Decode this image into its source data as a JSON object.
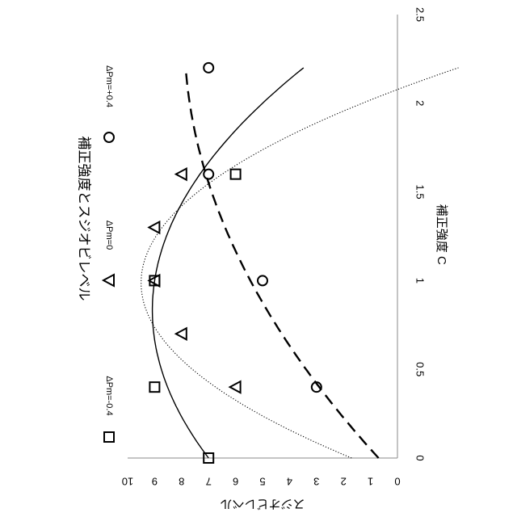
{
  "chart_data": {
    "type": "scatter",
    "title": "補正強度とスジオビレベル",
    "xlabel": "補正強度 C",
    "ylabel": "スジオビレベル",
    "xlim": [
      0,
      2.5
    ],
    "ylim": [
      0,
      10
    ],
    "x_ticks": [
      "0",
      "0.5",
      "1",
      "1.5",
      "2",
      "2.5"
    ],
    "y_ticks": [
      "0",
      "1",
      "2",
      "3",
      "4",
      "5",
      "6",
      "7",
      "8",
      "9",
      "10"
    ],
    "grid": false,
    "legend_position": "top",
    "orientation": "rotated 90 degrees clockwise",
    "series": [
      {
        "name": "ΔPm=-0.4",
        "marker": "square",
        "line_style": "solid",
        "points": [
          [
            0,
            7
          ],
          [
            0.4,
            9
          ],
          [
            1,
            9
          ],
          [
            1.6,
            6
          ]
        ],
        "fit_quadratic": [
          7.0,
          5.0,
          -3.0
        ]
      },
      {
        "name": "ΔPm=0",
        "marker": "triangle",
        "line_style": "dotted",
        "points": [
          [
            0.4,
            6
          ],
          [
            0.7,
            8
          ],
          [
            1,
            9
          ],
          [
            1.3,
            9
          ],
          [
            1.6,
            8
          ]
        ],
        "fit_quadratic": [
          1.7,
          15.8,
          -8.0
        ]
      },
      {
        "name": "ΔPm=+0.4",
        "marker": "circle",
        "line_style": "dashed",
        "points": [
          [
            0.4,
            3
          ],
          [
            1,
            5
          ],
          [
            1.6,
            7
          ],
          [
            2.2,
            7
          ]
        ],
        "fit_quadratic": [
          0.7,
          6.0,
          -1.25
        ]
      }
    ]
  }
}
